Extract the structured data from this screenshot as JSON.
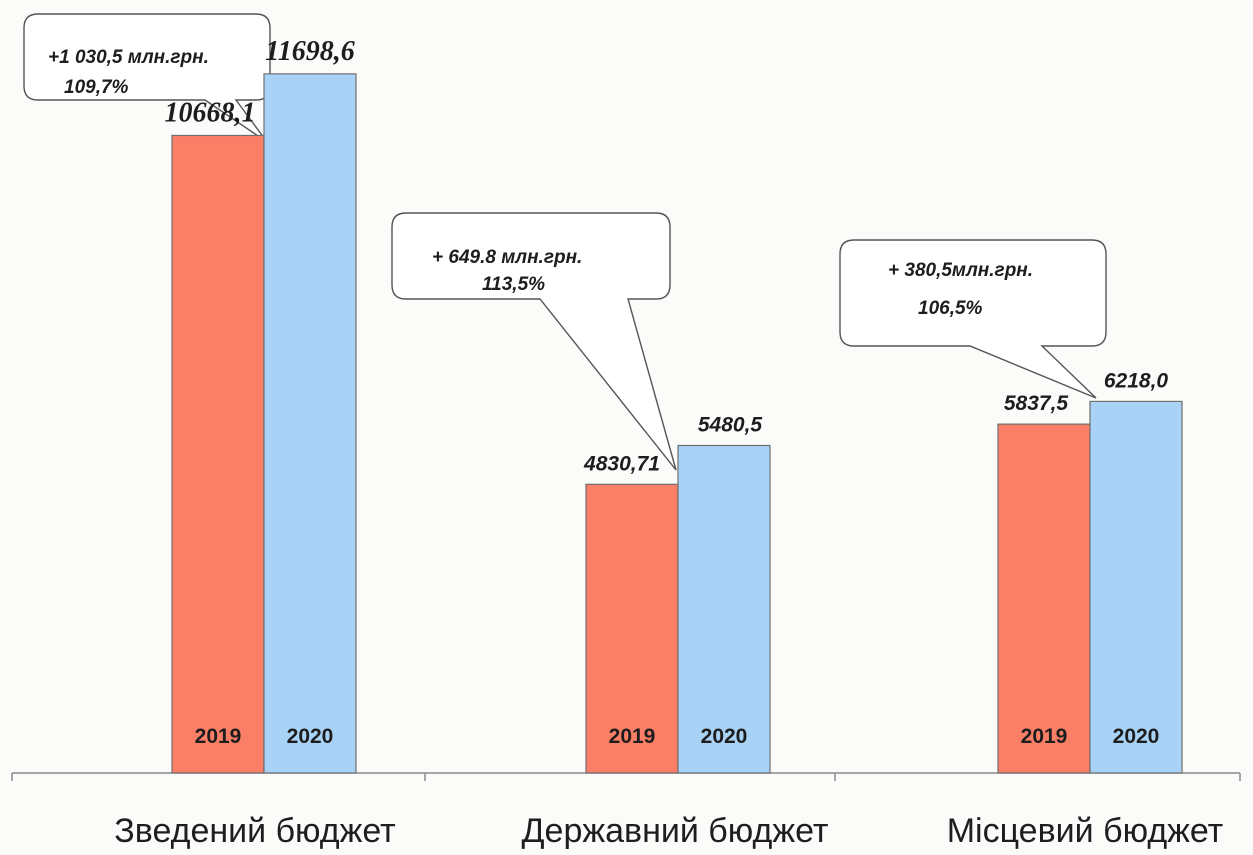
{
  "chart_data": {
    "type": "bar",
    "categories": [
      "Зведений бюджет",
      "Державний бюджет",
      "Місцевий бюджет"
    ],
    "series": [
      {
        "name": "2019",
        "color": "#fb7f66",
        "values": [
          10668.1,
          4830.71,
          5837.5
        ],
        "labels": [
          "10668,1",
          "4830,71",
          "5837,5"
        ],
        "bar_text": [
          "2019",
          "2019",
          "2019"
        ]
      },
      {
        "name": "2020",
        "color": "#a9d3f6",
        "values": [
          11698.6,
          5480.5,
          6218.0
        ],
        "labels": [
          "11698,6",
          "5480,5",
          "6218,0"
        ],
        "bar_text": [
          "2020",
          "2020",
          "2020"
        ]
      }
    ],
    "callouts": [
      {
        "line1": "+1 030,5 млн.грн.",
        "line2": "109,7%"
      },
      {
        "line1": "+ 649.8 млн.грн.",
        "line2": "113,5%"
      },
      {
        "line1": "+ 380,5млн.грн.",
        "line2": "106,5%"
      }
    ],
    "ylim": [
      0,
      12600
    ],
    "grid": false,
    "legend": "none"
  }
}
